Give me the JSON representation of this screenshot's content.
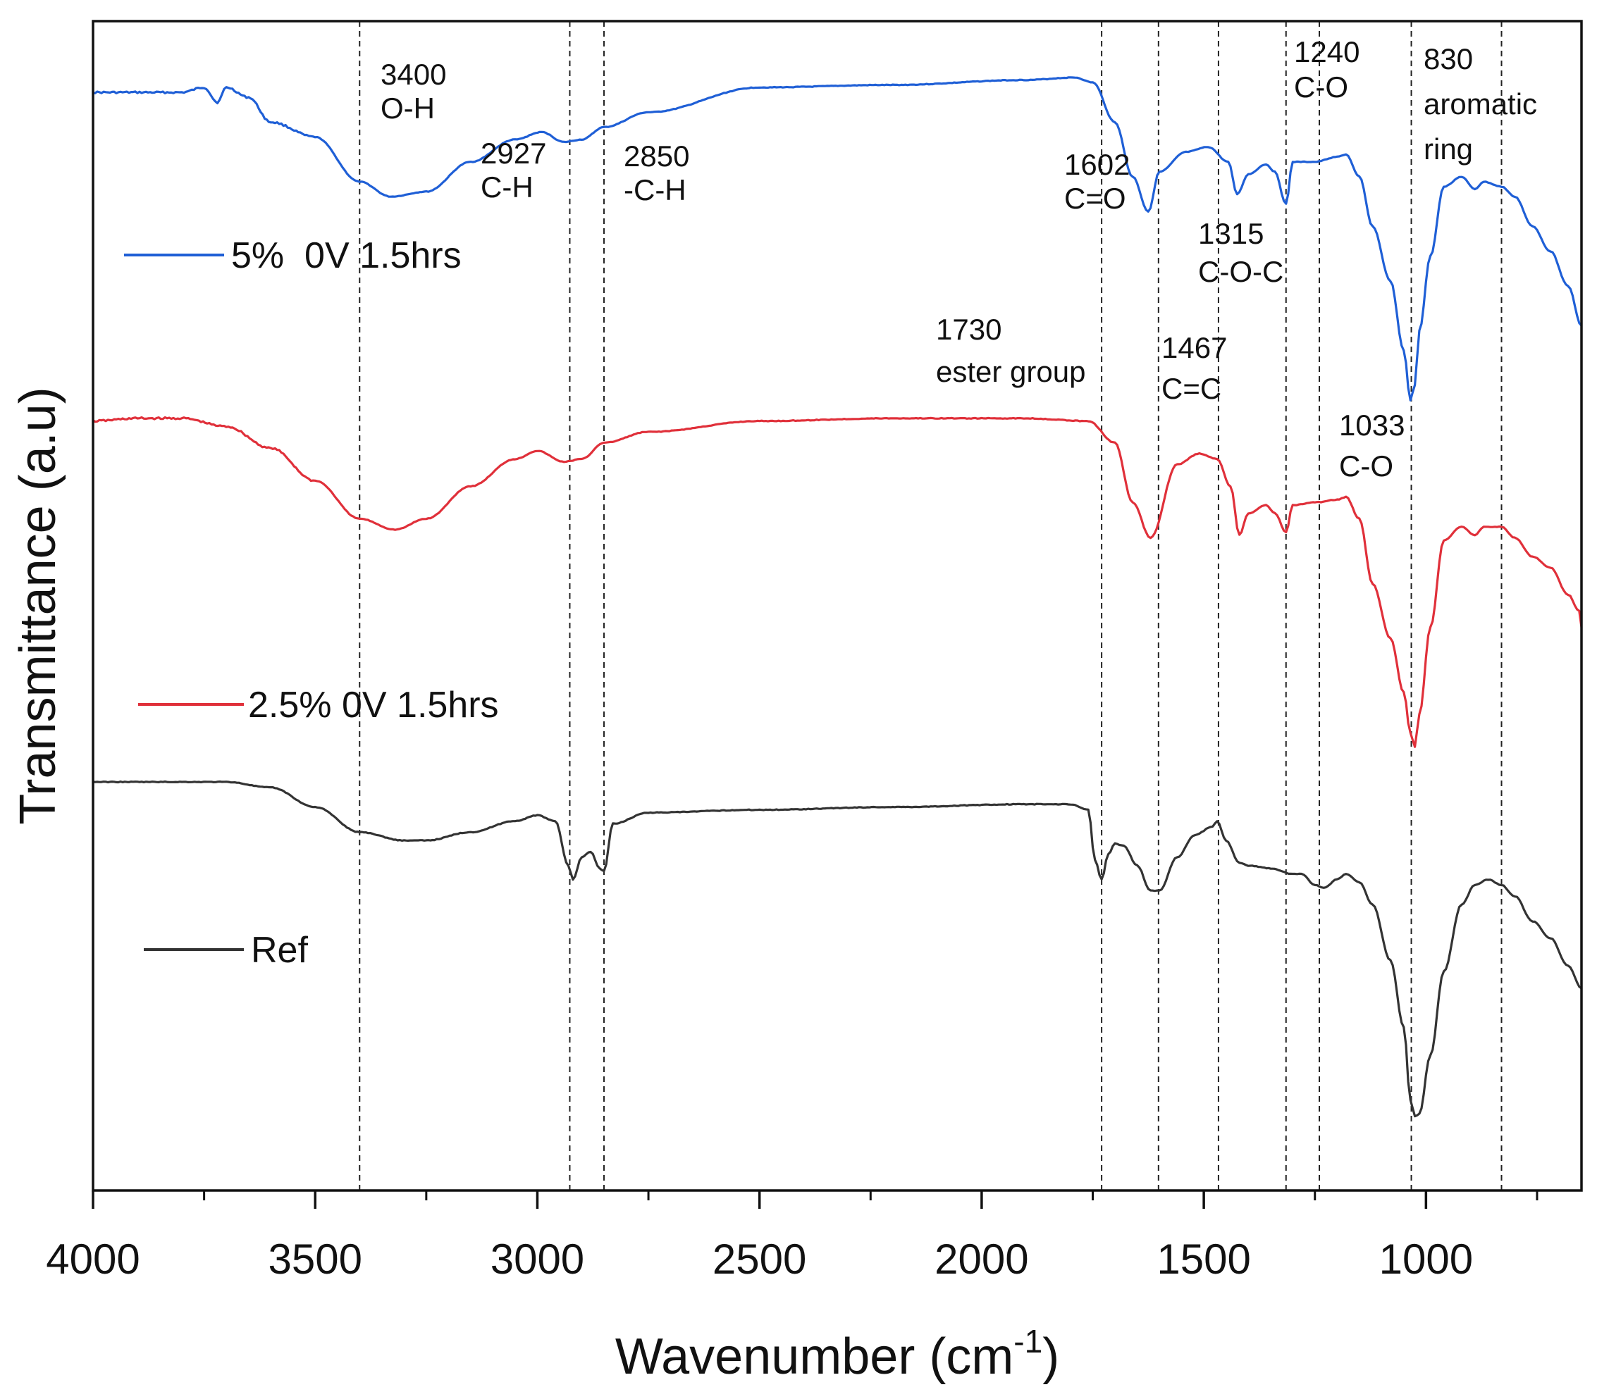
{
  "chart_data": {
    "type": "line",
    "xlabel": "Wavenumber (cm",
    "xlabel_sup": "-1",
    "xlabel_close": ")",
    "ylabel": "Transmittance (a.u)",
    "xlim": [
      4000,
      650
    ],
    "x_reversed": true,
    "y_units": "arbitrary (stacked offsets)",
    "xticks": [
      4000,
      3500,
      3000,
      2500,
      2000,
      1500,
      1000
    ],
    "xtick_labels": [
      "4000",
      "3500",
      "3000",
      "2500",
      "2000",
      "1500",
      "1000"
    ],
    "minor_xticks": [
      3750,
      3250,
      2750,
      2250,
      1750,
      1250,
      750
    ],
    "colors": {
      "5pct": "#1f5fd6",
      "2_5pct": "#e0303a",
      "ref": "#333333"
    },
    "series": [
      {
        "id": "s5",
        "name": "5%  0V 1.5hrs",
        "color": "#1f5fd6",
        "x": [
          4000,
          3900,
          3800,
          3750,
          3720,
          3700,
          3650,
          3600,
          3500,
          3400,
          3330,
          3250,
          3150,
          3050,
          2990,
          2940,
          2900,
          2850,
          2750,
          2500,
          2200,
          1900,
          1790,
          1750,
          1700,
          1660,
          1625,
          1600,
          1540,
          1490,
          1445,
          1425,
          1400,
          1360,
          1340,
          1315,
          1300,
          1250,
          1200,
          1180,
          1150,
          1120,
          1080,
          1050,
          1035,
          1025,
          1015,
          990,
          960,
          920,
          890,
          870,
          830,
          800,
          760,
          720,
          680,
          650
        ],
        "y": [
          6.2,
          6.2,
          6.2,
          6.3,
          6.0,
          6.3,
          6.1,
          5.6,
          5.3,
          4.4,
          4.1,
          4.2,
          4.8,
          5.25,
          5.4,
          5.2,
          5.25,
          5.5,
          5.8,
          6.3,
          6.35,
          6.45,
          6.5,
          6.4,
          5.6,
          4.5,
          3.8,
          4.6,
          5.0,
          5.1,
          4.8,
          4.15,
          4.55,
          4.75,
          4.6,
          3.95,
          4.8,
          4.8,
          4.9,
          4.95,
          4.5,
          3.5,
          2.4,
          1.0,
          0.0,
          0.3,
          1.4,
          2.9,
          4.3,
          4.5,
          4.25,
          4.4,
          4.3,
          4.1,
          3.5,
          3.0,
          2.3,
          1.5
        ]
      },
      {
        "id": "s25",
        "name": "2.5% 0V 1.5hrs",
        "color": "#e0303a",
        "x": [
          4000,
          3900,
          3800,
          3700,
          3600,
          3500,
          3400,
          3320,
          3250,
          3150,
          3050,
          3000,
          2940,
          2900,
          2850,
          2750,
          2500,
          2200,
          1900,
          1760,
          1700,
          1660,
          1620,
          1560,
          1510,
          1470,
          1440,
          1420,
          1400,
          1360,
          1340,
          1315,
          1300,
          1250,
          1200,
          1180,
          1150,
          1120,
          1080,
          1050,
          1035,
          1025,
          1015,
          990,
          960,
          920,
          890,
          870,
          830,
          800,
          760,
          720,
          680,
          655,
          650
        ],
        "y": [
          6.0,
          6.05,
          6.05,
          5.9,
          5.5,
          4.9,
          4.2,
          4.0,
          4.2,
          4.8,
          5.3,
          5.45,
          5.25,
          5.3,
          5.6,
          5.8,
          6.0,
          6.05,
          6.05,
          6.0,
          5.6,
          4.5,
          3.85,
          5.2,
          5.4,
          5.3,
          4.8,
          3.9,
          4.3,
          4.45,
          4.3,
          3.95,
          4.45,
          4.5,
          4.55,
          4.6,
          4.2,
          3.0,
          2.0,
          1.0,
          0.25,
          0.0,
          0.6,
          2.2,
          3.8,
          4.05,
          3.9,
          4.05,
          4.05,
          3.85,
          3.5,
          3.3,
          2.8,
          2.5,
          2.2
        ]
      },
      {
        "id": "sref",
        "name": "Ref",
        "color": "#333333",
        "x": [
          4000,
          3900,
          3800,
          3700,
          3600,
          3500,
          3400,
          3300,
          3250,
          3150,
          3050,
          3000,
          2960,
          2930,
          2920,
          2900,
          2880,
          2860,
          2850,
          2830,
          2750,
          2500,
          2200,
          1900,
          1800,
          1760,
          1745,
          1730,
          1715,
          1700,
          1680,
          1650,
          1620,
          1600,
          1560,
          1520,
          1480,
          1470,
          1450,
          1420,
          1400,
          1350,
          1300,
          1280,
          1250,
          1230,
          1200,
          1180,
          1150,
          1120,
          1080,
          1050,
          1035,
          1025,
          1015,
          990,
          960,
          920,
          890,
          860,
          830,
          800,
          760,
          720,
          680,
          650
        ],
        "y": [
          7.0,
          7.0,
          7.0,
          7.0,
          6.9,
          6.55,
          6.1,
          5.95,
          5.95,
          6.1,
          6.3,
          6.4,
          6.3,
          5.5,
          5.25,
          5.65,
          5.75,
          5.45,
          5.4,
          6.25,
          6.45,
          6.5,
          6.55,
          6.6,
          6.6,
          6.5,
          5.6,
          5.25,
          5.7,
          5.9,
          5.85,
          5.5,
          5.05,
          5.05,
          5.65,
          6.05,
          6.2,
          6.3,
          5.95,
          5.55,
          5.5,
          5.45,
          5.35,
          5.35,
          5.15,
          5.1,
          5.25,
          5.35,
          5.2,
          4.8,
          3.8,
          2.6,
          1.3,
          1.0,
          1.05,
          2.1,
          3.6,
          4.8,
          5.15,
          5.25,
          5.15,
          4.95,
          4.5,
          4.2,
          3.7,
          3.3
        ]
      }
    ],
    "reference_lines": [
      3400,
      2927,
      2850,
      1730,
      1602,
      1467,
      1315,
      1240,
      1033,
      830
    ],
    "annotations": [
      {
        "id": "a3400",
        "wavenumber": 3400,
        "lines": [
          "3400",
          "O-H"
        ]
      },
      {
        "id": "a2927",
        "wavenumber": 2927,
        "lines": [
          "2927",
          "C-H"
        ]
      },
      {
        "id": "a2850",
        "wavenumber": 2850,
        "lines": [
          "2850",
          "-C-H"
        ]
      },
      {
        "id": "a1602",
        "wavenumber": 1602,
        "lines": [
          "1602",
          "C=O"
        ]
      },
      {
        "id": "a1315",
        "wavenumber": 1315,
        "lines": [
          "1315",
          "C-O-C"
        ]
      },
      {
        "id": "a1240",
        "wavenumber": 1240,
        "lines": [
          "1240",
          "C-O"
        ]
      },
      {
        "id": "a830",
        "wavenumber": 830,
        "lines": [
          "830",
          "aromatic",
          "ring"
        ]
      },
      {
        "id": "a1730",
        "wavenumber": 1730,
        "lines": [
          "1730",
          "ester group"
        ]
      },
      {
        "id": "a1467",
        "wavenumber": 1467,
        "lines": [
          "1467",
          "C=C"
        ]
      },
      {
        "id": "a1033",
        "wavenumber": 1033,
        "lines": [
          "1033",
          "C-O"
        ]
      }
    ],
    "legend": [
      {
        "series": "s5",
        "label": "5%  0V 1.5hrs"
      },
      {
        "series": "s25",
        "label": "2.5% 0V 1.5hrs"
      },
      {
        "series": "sref",
        "label": "Ref"
      }
    ]
  }
}
